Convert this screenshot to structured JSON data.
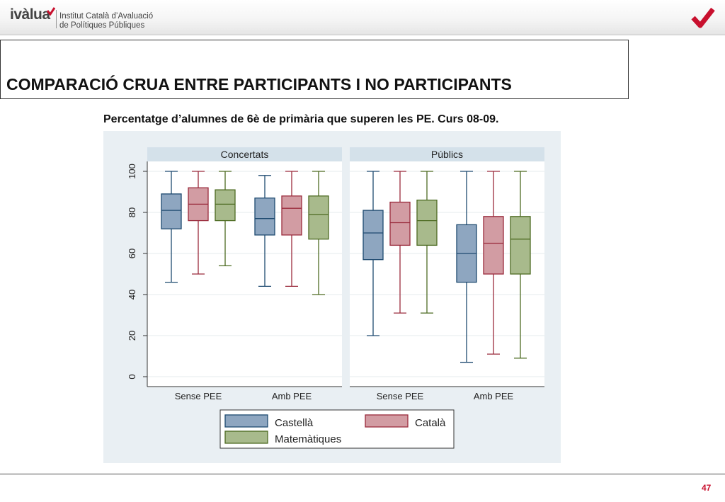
{
  "header": {
    "brand": "ivàlua",
    "institute_line1": "Institut Català d’Avaluació",
    "institute_line2": "de Polítiques Públiques"
  },
  "slide": {
    "title": "COMPARACIÓ CRUA ENTRE PARTICIPANTS I NO PARTICIPANTS",
    "subtitle": "Percentatge d’alumnes de 6è de primària que superen les PE. Curs 08-09.",
    "page_number": "47"
  },
  "colors": {
    "accent": "#c8102e",
    "castella_fill": "#8ea6c0",
    "castella_stroke": "#1e4a70",
    "catala_fill": "#d29ca3",
    "catala_stroke": "#9a2b3c",
    "mates_fill": "#a8ba8c",
    "mates_stroke": "#4d6b22"
  },
  "chart_data": {
    "type": "boxplot",
    "ylim": [
      0,
      100
    ],
    "yticks": [
      0,
      20,
      40,
      60,
      80,
      100
    ],
    "grid": true,
    "legend_position": "bottom",
    "series_names": [
      "Castellà",
      "Català",
      "Matemàtiques"
    ],
    "panels": [
      {
        "title": "Concertats",
        "groups": [
          {
            "label": "Sense PEE",
            "boxes": [
              {
                "series": "Castellà",
                "whisker_low": 46,
                "q1": 72,
                "median": 81,
                "q3": 89,
                "whisker_high": 100
              },
              {
                "series": "Català",
                "whisker_low": 50,
                "q1": 76,
                "median": 84,
                "q3": 92,
                "whisker_high": 100
              },
              {
                "series": "Matemàtiques",
                "whisker_low": 54,
                "q1": 76,
                "median": 84,
                "q3": 91,
                "whisker_high": 100
              }
            ]
          },
          {
            "label": "Amb PEE",
            "boxes": [
              {
                "series": "Castellà",
                "whisker_low": 44,
                "q1": 69,
                "median": 77,
                "q3": 87,
                "whisker_high": 98
              },
              {
                "series": "Català",
                "whisker_low": 44,
                "q1": 69,
                "median": 82,
                "q3": 88,
                "whisker_high": 100
              },
              {
                "series": "Matemàtiques",
                "whisker_low": 40,
                "q1": 67,
                "median": 79,
                "q3": 88,
                "whisker_high": 100
              }
            ]
          }
        ]
      },
      {
        "title": "Públics",
        "groups": [
          {
            "label": "Sense PEE",
            "boxes": [
              {
                "series": "Castellà",
                "whisker_low": 20,
                "q1": 57,
                "median": 70,
                "q3": 81,
                "whisker_high": 100
              },
              {
                "series": "Català",
                "whisker_low": 31,
                "q1": 64,
                "median": 75,
                "q3": 85,
                "whisker_high": 100
              },
              {
                "series": "Matemàtiques",
                "whisker_low": 31,
                "q1": 64,
                "median": 76,
                "q3": 86,
                "whisker_high": 100
              }
            ]
          },
          {
            "label": "Amb PEE",
            "boxes": [
              {
                "series": "Castellà",
                "whisker_low": 7,
                "q1": 46,
                "median": 60,
                "q3": 74,
                "whisker_high": 100
              },
              {
                "series": "Català",
                "whisker_low": 11,
                "q1": 50,
                "median": 65,
                "q3": 78,
                "whisker_high": 100
              },
              {
                "series": "Matemàtiques",
                "whisker_low": 9,
                "q1": 50,
                "median": 67,
                "q3": 78,
                "whisker_high": 100
              }
            ]
          }
        ]
      }
    ]
  }
}
